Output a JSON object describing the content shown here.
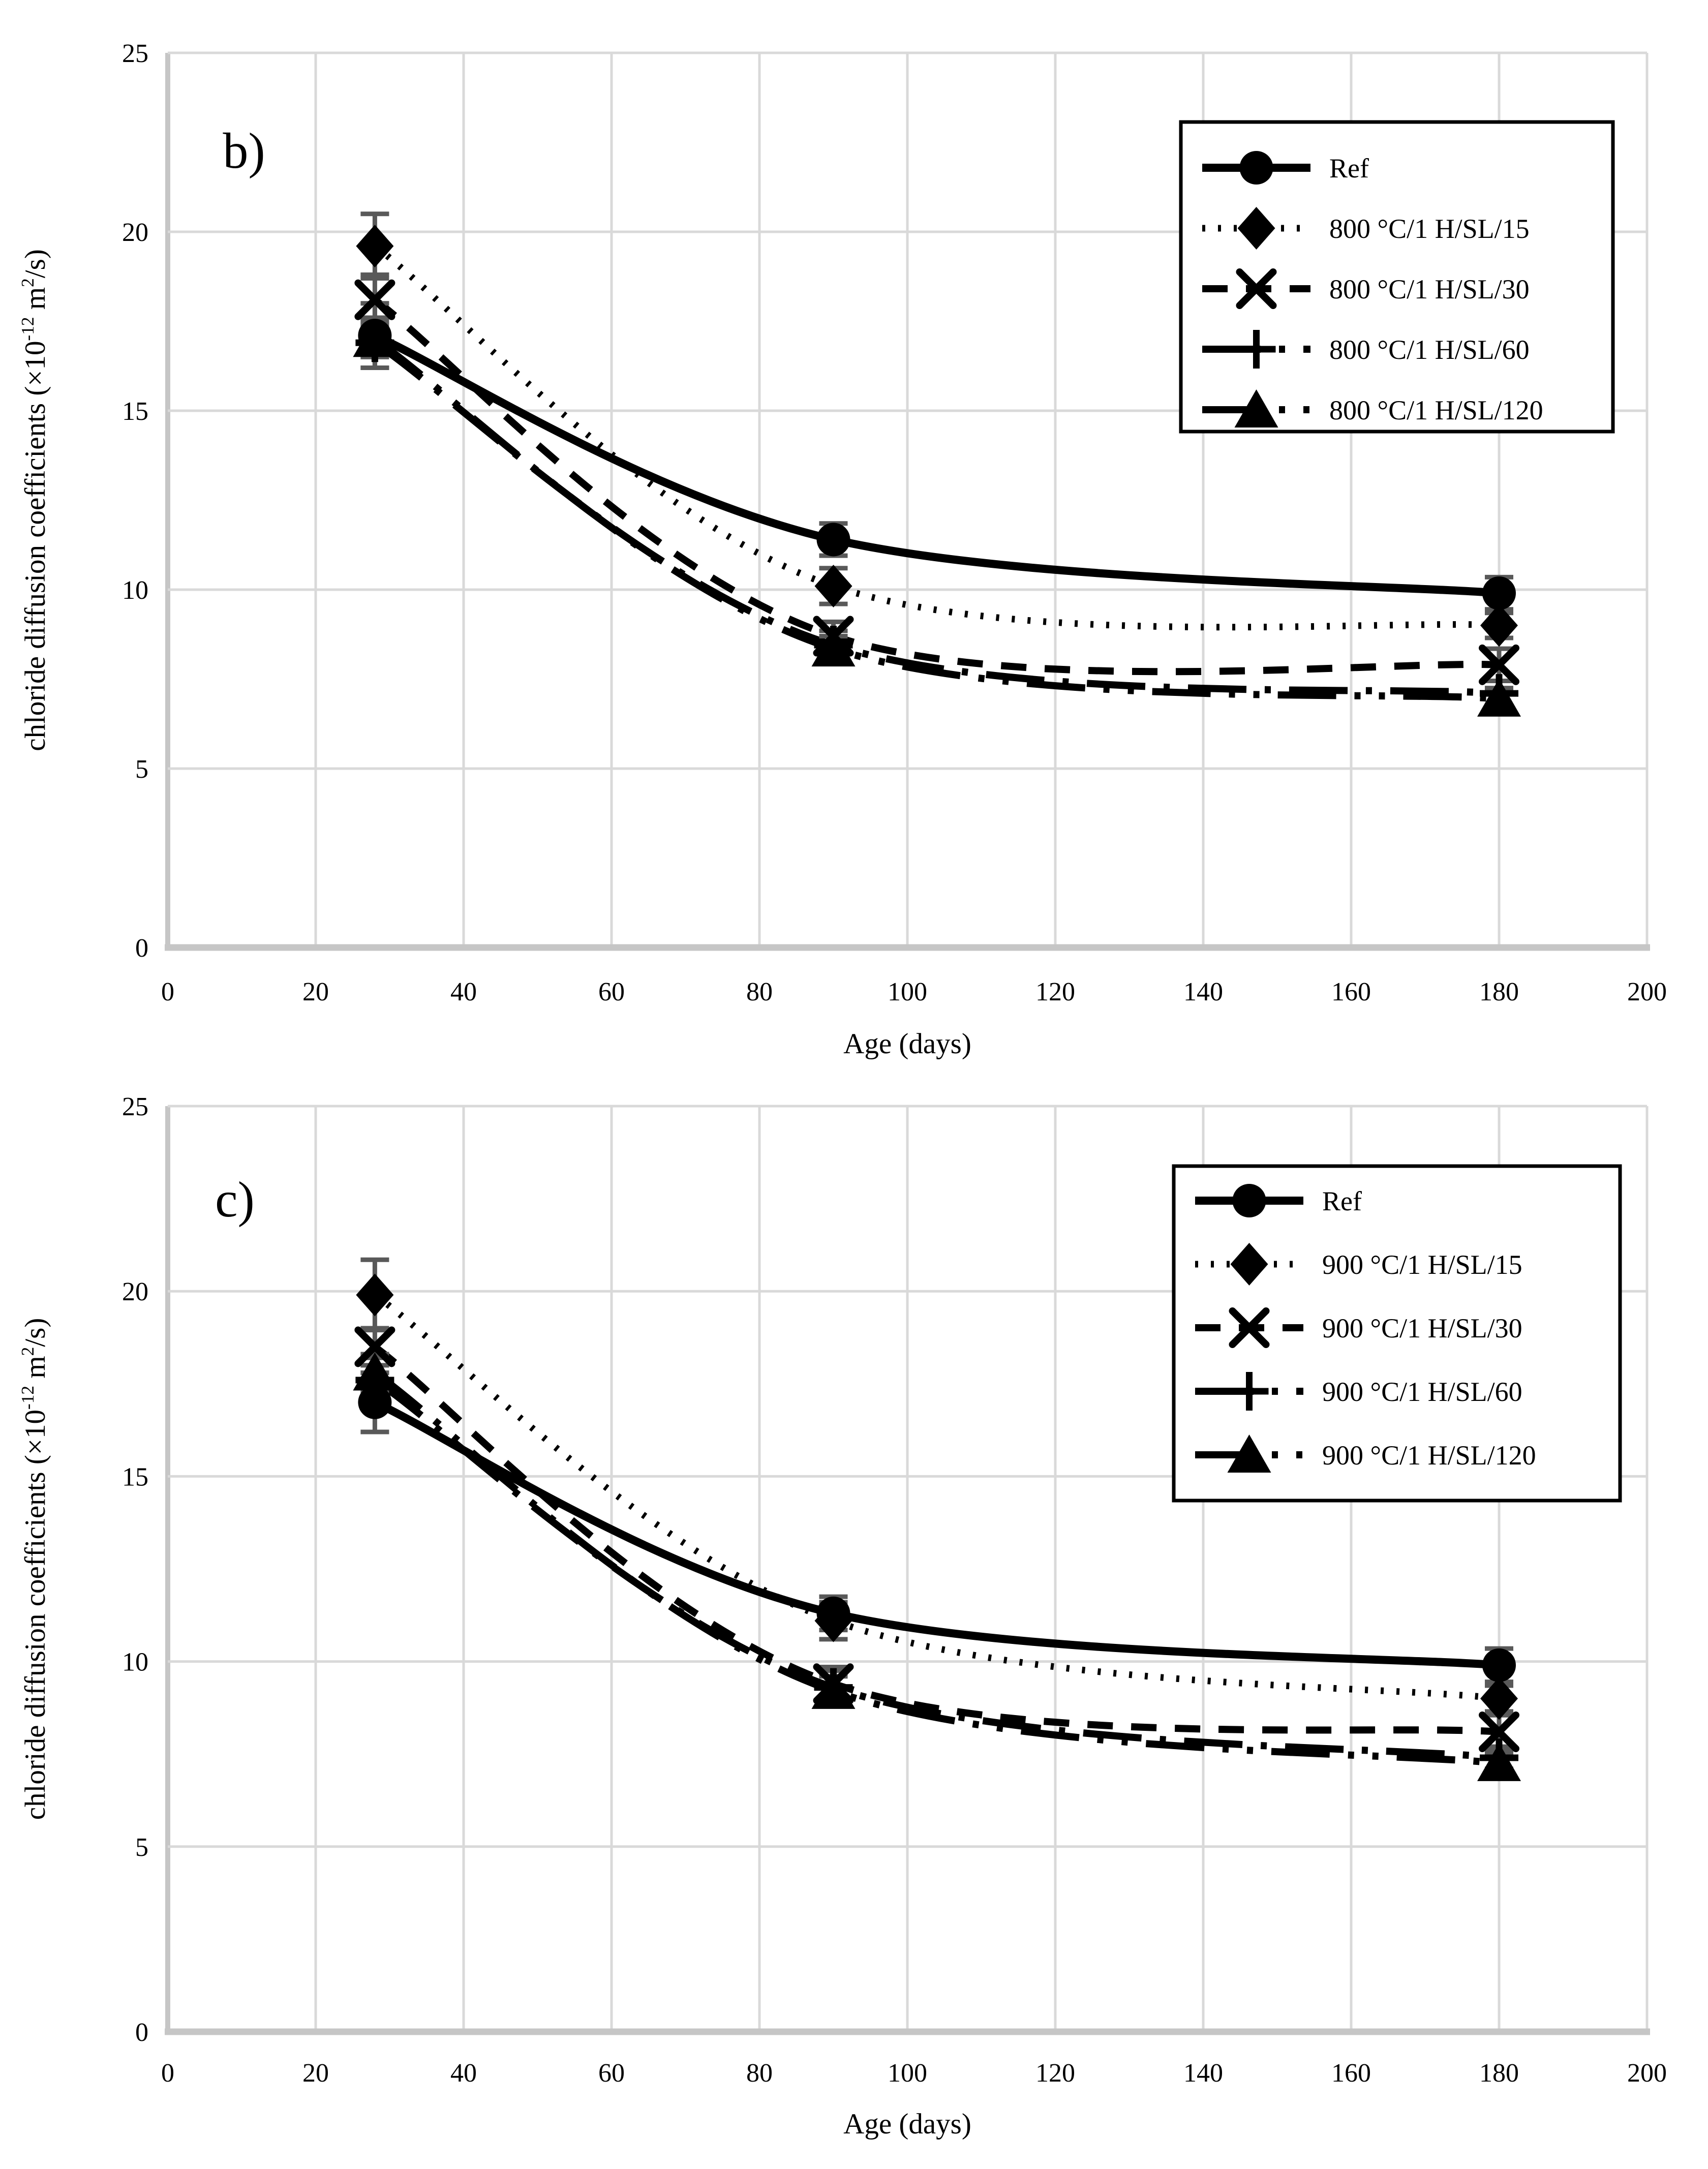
{
  "page": {
    "background": "#ffffff"
  },
  "colors": {
    "series": "#000000",
    "gridline": "#d9d9d9",
    "axis": "#c6c6c6",
    "error_bar": "#595959",
    "legend_border": "#000000",
    "legend_fill": "#ffffff"
  },
  "chart_data": [
    {
      "id": "b",
      "type": "line",
      "panel_label": "b)",
      "xlabel": "Age (days)",
      "ylabel_parts": [
        {
          "t": "chloride diffusion coefficients (×10",
          "sup": false
        },
        {
          "t": "-12",
          "sup": true
        },
        {
          "t": " m",
          "sup": false
        },
        {
          "t": "2",
          "sup": true
        },
        {
          "t": "/s)",
          "sup": false
        }
      ],
      "xlim": [
        0,
        200
      ],
      "ylim": [
        0,
        25
      ],
      "x_ticks": [
        0,
        20,
        40,
        60,
        80,
        100,
        120,
        140,
        160,
        180,
        200
      ],
      "y_ticks": [
        0,
        5,
        10,
        15,
        20,
        25
      ],
      "grid": true,
      "legend_position": "top-right",
      "x": [
        28,
        90,
        180
      ],
      "series": [
        {
          "name": "Ref",
          "marker": "circle",
          "line": "solid",
          "values": [
            17.1,
            11.4,
            9.9
          ],
          "err": [
            0.9,
            0.45,
            0.45
          ]
        },
        {
          "name": "800 °C/1 H/SL/15",
          "marker": "diamond",
          "line": "dotted",
          "values": [
            19.6,
            10.1,
            9.0
          ],
          "err": [
            0.9,
            0.5,
            0.35
          ]
        },
        {
          "name": "800 °C/1 H/SL/30",
          "marker": "x",
          "line": "dashed",
          "values": [
            18.1,
            8.7,
            7.9
          ],
          "err": [
            0.7,
            0.4,
            0.45
          ]
        },
        {
          "name": "800 °C/1 H/SL/60",
          "marker": "plus",
          "line": "dashdot",
          "values": [
            16.9,
            8.45,
            7.1
          ],
          "err": [
            0.7,
            0.4,
            0.35
          ]
        },
        {
          "name": "800 °C/1 H/SL/120",
          "marker": "triangle",
          "line": "dashdotdot",
          "values": [
            17.0,
            8.35,
            6.95
          ],
          "err": [
            0.5,
            0.35,
            0.3
          ]
        }
      ]
    },
    {
      "id": "c",
      "type": "line",
      "panel_label": "c)",
      "xlabel": "Age (days)",
      "ylabel_parts": [
        {
          "t": "chloride diffusion coefficients (×10",
          "sup": false
        },
        {
          "t": "-12",
          "sup": true
        },
        {
          "t": " m",
          "sup": false
        },
        {
          "t": "2",
          "sup": true
        },
        {
          "t": "/s)",
          "sup": false
        }
      ],
      "xlim": [
        0,
        200
      ],
      "ylim": [
        0,
        25
      ],
      "x_ticks": [
        0,
        20,
        40,
        60,
        80,
        100,
        120,
        140,
        160,
        180,
        200
      ],
      "y_ticks": [
        0,
        5,
        10,
        15,
        20,
        25
      ],
      "grid": true,
      "legend_position": "top-right",
      "x": [
        28,
        90,
        180
      ],
      "series": [
        {
          "name": "Ref",
          "marker": "circle",
          "line": "solid",
          "values": [
            17.0,
            11.3,
            9.9
          ],
          "err": [
            0.8,
            0.45,
            0.45
          ]
        },
        {
          "name": "900 °C/1 H/SL/15",
          "marker": "diamond",
          "line": "dotted",
          "values": [
            19.9,
            11.1,
            9.0
          ],
          "err": [
            0.95,
            0.5,
            0.35
          ]
        },
        {
          "name": "900 °C/1 H/SL/30",
          "marker": "x",
          "line": "dashed",
          "values": [
            18.5,
            9.4,
            8.1
          ],
          "err": [
            0.5,
            0.45,
            0.45
          ]
        },
        {
          "name": "900 °C/1 H/SL/60",
          "marker": "plus",
          "line": "dashdot",
          "values": [
            17.6,
            9.3,
            7.4
          ],
          "err": [
            0.6,
            0.45,
            0.3
          ]
        },
        {
          "name": "900 °C/1 H/SL/120",
          "marker": "triangle",
          "line": "dashdotdot",
          "values": [
            17.8,
            9.2,
            7.25
          ],
          "err": [
            0.5,
            0.4,
            0.3
          ]
        }
      ]
    }
  ]
}
